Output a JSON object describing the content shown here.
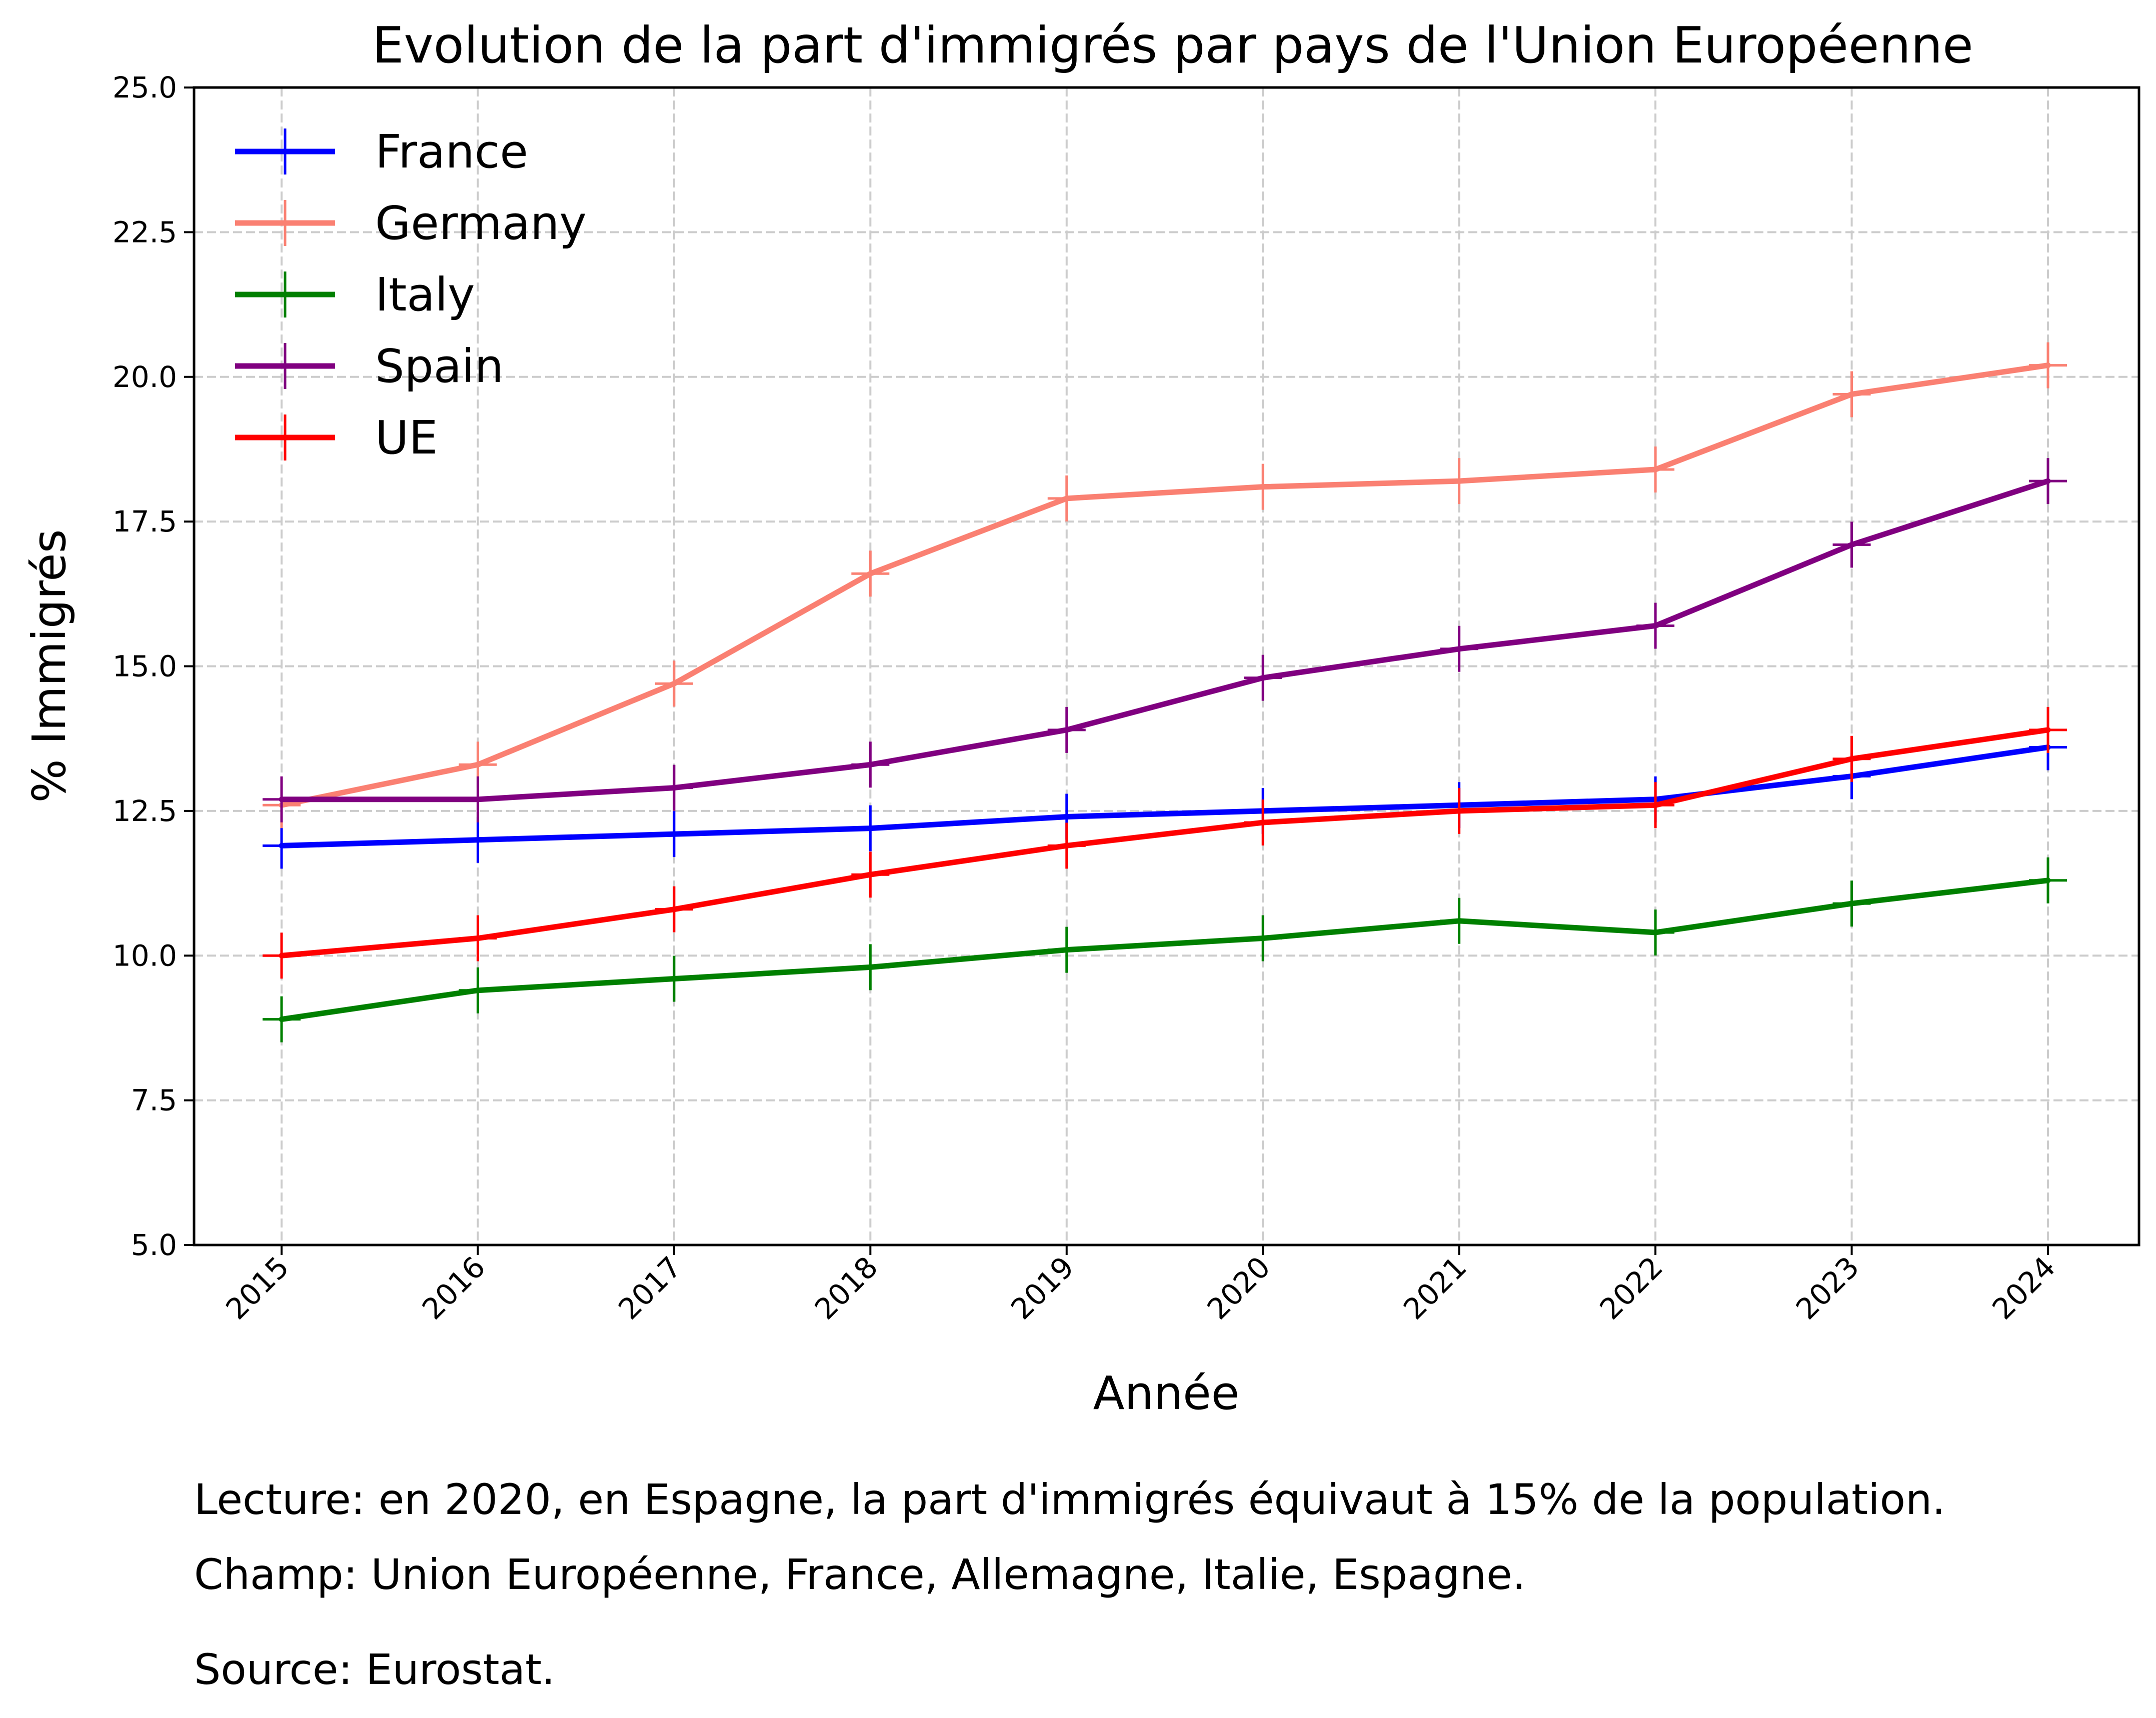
{
  "chart_data": {
    "type": "line",
    "title": "Evolution de la part d'immigrés par pays de l'Union Européenne",
    "xlabel": "Année",
    "ylabel": "% Immigrés",
    "x": [
      "2015",
      "2016",
      "2017",
      "2018",
      "2019",
      "2020",
      "2021",
      "2022",
      "2023",
      "2024"
    ],
    "ylim": [
      5.0,
      25.0
    ],
    "yticks": [
      "5.0",
      "7.5",
      "10.0",
      "12.5",
      "15.0",
      "17.5",
      "20.0",
      "22.5",
      "25.0"
    ],
    "grid": true,
    "legend_position": "top-left",
    "series": [
      {
        "name": "France",
        "color": "#0000ff",
        "values": [
          11.9,
          12.0,
          12.1,
          12.2,
          12.4,
          12.5,
          12.6,
          12.7,
          13.1,
          13.6
        ]
      },
      {
        "name": "Germany",
        "color": "#fa8072",
        "values": [
          12.6,
          13.3,
          14.7,
          16.6,
          17.9,
          18.1,
          18.2,
          18.4,
          19.7,
          20.2
        ]
      },
      {
        "name": "Italy",
        "color": "#008000",
        "values": [
          8.9,
          9.4,
          9.6,
          9.8,
          10.1,
          10.3,
          10.6,
          10.4,
          10.9,
          11.3
        ]
      },
      {
        "name": "Spain",
        "color": "#800080",
        "values": [
          12.7,
          12.7,
          12.9,
          13.3,
          13.9,
          14.8,
          15.3,
          15.7,
          17.1,
          18.2
        ]
      },
      {
        "name": "UE",
        "color": "#ff0000",
        "values": [
          10.0,
          10.3,
          10.8,
          11.4,
          11.9,
          12.3,
          12.5,
          12.6,
          13.4,
          13.9
        ]
      }
    ]
  },
  "notes": {
    "lecture": "Lecture: en 2020, en Espagne, la part d'immigrés équivaut à 15% de la population.",
    "champ": "Champ: Union Européenne, France, Allemagne, Italie, Espagne.",
    "source": "Source: Eurostat."
  }
}
